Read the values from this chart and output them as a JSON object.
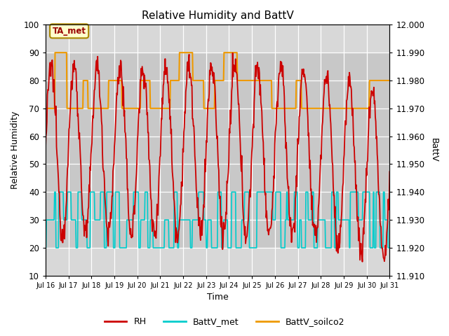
{
  "title": "Relative Humidity and BattV",
  "xlabel": "Time",
  "ylabel_left": "Relative Humidity",
  "ylabel_right": "BattV",
  "ylim_left": [
    10,
    100
  ],
  "ylim_right": [
    11.91,
    12.0
  ],
  "xtick_labels": [
    "Jul 16",
    "Jul 17",
    "Jul 18",
    "Jul 19",
    "Jul 20",
    "Jul 21",
    "Jul 22",
    "Jul 23",
    "Jul 24",
    "Jul 25",
    "Jul 26",
    "Jul 27",
    "Jul 28",
    "Jul 29",
    "Jul 30",
    "Jul 31"
  ],
  "ytick_left": [
    10,
    20,
    30,
    40,
    50,
    60,
    70,
    80,
    90,
    100
  ],
  "ytick_right": [
    11.91,
    11.92,
    11.93,
    11.94,
    11.95,
    11.96,
    11.97,
    11.98,
    11.99,
    12.0
  ],
  "annotation_text": "TA_met",
  "rh_color": "#cc0000",
  "battv_met_color": "#00cccc",
  "battv_soilco2_color": "#ee9900",
  "plot_bg_color": "#d8d8d8",
  "band_color": "#c8c8c8",
  "fig_bg_color": "#ffffff",
  "legend_labels": [
    "RH",
    "BattV_met",
    "BattV_soilco2"
  ],
  "legend_colors": [
    "#cc0000",
    "#00cccc",
    "#ee9900"
  ]
}
